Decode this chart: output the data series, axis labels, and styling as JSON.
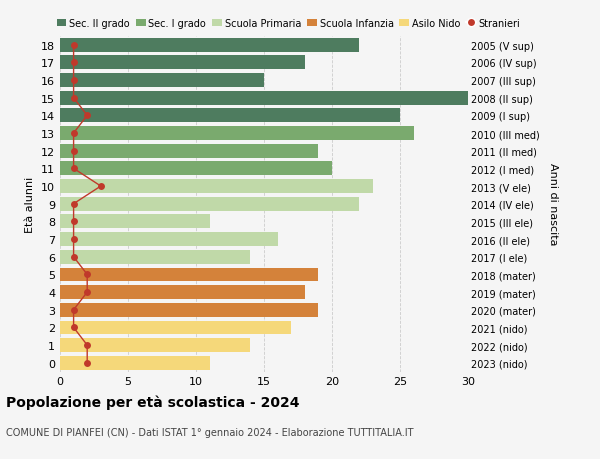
{
  "ages": [
    18,
    17,
    16,
    15,
    14,
    13,
    12,
    11,
    10,
    9,
    8,
    7,
    6,
    5,
    4,
    3,
    2,
    1,
    0
  ],
  "labels_right": [
    "2005 (V sup)",
    "2006 (IV sup)",
    "2007 (III sup)",
    "2008 (II sup)",
    "2009 (I sup)",
    "2010 (III med)",
    "2011 (II med)",
    "2012 (I med)",
    "2013 (V ele)",
    "2014 (IV ele)",
    "2015 (III ele)",
    "2016 (II ele)",
    "2017 (I ele)",
    "2018 (mater)",
    "2019 (mater)",
    "2020 (mater)",
    "2021 (nido)",
    "2022 (nido)",
    "2023 (nido)"
  ],
  "bar_values": [
    22,
    18,
    15,
    30,
    25,
    26,
    19,
    20,
    23,
    22,
    11,
    16,
    14,
    19,
    18,
    19,
    17,
    14,
    11
  ],
  "stranieri": [
    1,
    1,
    1,
    1,
    2,
    1,
    1,
    1,
    3,
    1,
    1,
    1,
    1,
    2,
    2,
    1,
    1,
    2,
    2
  ],
  "bar_colors": [
    "#4e7c5f",
    "#4e7c5f",
    "#4e7c5f",
    "#4e7c5f",
    "#4e7c5f",
    "#7aaa6e",
    "#7aaa6e",
    "#7aaa6e",
    "#c0d9a8",
    "#c0d9a8",
    "#c0d9a8",
    "#c0d9a8",
    "#c0d9a8",
    "#d4823a",
    "#d4823a",
    "#d4823a",
    "#f5d87a",
    "#f5d87a",
    "#f5d87a"
  ],
  "legend_labels": [
    "Sec. II grado",
    "Sec. I grado",
    "Scuola Primaria",
    "Scuola Infanzia",
    "Asilo Nido",
    "Stranieri"
  ],
  "legend_colors": [
    "#4e7c5f",
    "#7aaa6e",
    "#c0d9a8",
    "#d4823a",
    "#f5d87a",
    "#c0392b"
  ],
  "stranieri_color": "#c0392b",
  "title_bold": "Popolazione per età scolastica - 2024",
  "subtitle": "COMUNE DI PIANFEI (CN) - Dati ISTAT 1° gennaio 2024 - Elaborazione TUTTITALIA.IT",
  "ylabel": "Età alunni",
  "ylabel_right": "Anni di nascita",
  "xlim": [
    0,
    30
  ],
  "background_color": "#f5f5f5",
  "grid_color": "#cccccc"
}
